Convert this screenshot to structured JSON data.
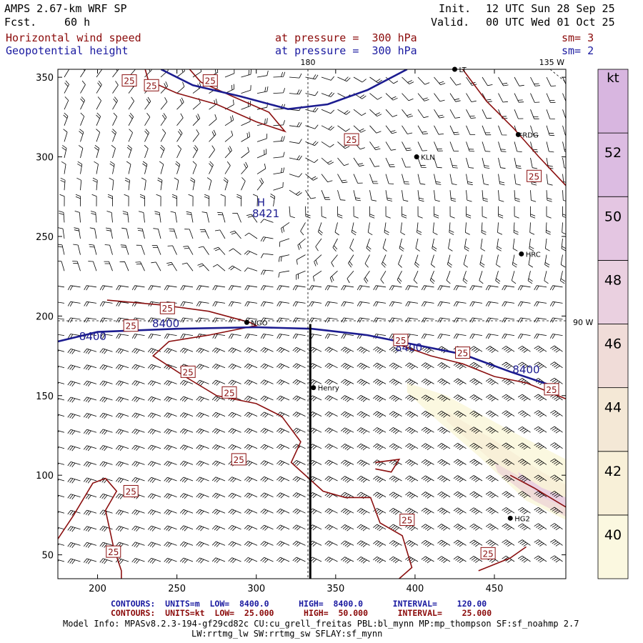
{
  "header": {
    "model": "AMPS 2.67-km WRF SP",
    "fcst_label": "Fcst.",
    "fcst_value": "60 h",
    "init_label": "Init.",
    "init_value": "12 UTC Sun 28 Sep 25",
    "valid_label": "Valid.",
    "valid_value": "00 UTC Wed 01 Oct 25",
    "field1": "Horizontal wind speed",
    "field1_level": "at pressure =  300 hPa",
    "field1_sm": "sm= 3",
    "field2": "Geopotential height",
    "field2_level": "at pressure =  300 hPa",
    "field2_sm": "sm= 2"
  },
  "colors": {
    "speed_contour": "#8b1010",
    "height_contour": "#1c1c90",
    "fill_40": "#fbf8e0",
    "fill_42": "#f8f0d8",
    "fill_44": "#f0dcd8",
    "fill_48": "#ead0e0"
  },
  "chart_data": {
    "type": "contour",
    "title": "Horizontal wind speed / Geopotential height at 300 hPa",
    "xlim": [
      175,
      495
    ],
    "ylim": [
      35,
      355
    ],
    "x_ticks": [
      200,
      250,
      300,
      350,
      400,
      450
    ],
    "y_ticks": [
      50,
      100,
      150,
      200,
      250,
      300,
      350
    ],
    "height_contours": [
      {
        "label": "8400",
        "points": [
          [
            175,
            184
          ],
          [
            200,
            190
          ],
          [
            250,
            192
          ],
          [
            300,
            193
          ],
          [
            335,
            192
          ],
          [
            370,
            188
          ],
          [
            400,
            182
          ],
          [
            430,
            176
          ],
          [
            460,
            165
          ],
          [
            490,
            155
          ]
        ]
      },
      {
        "label": "8400",
        "points": [
          [
            240,
            355
          ],
          [
            260,
            345
          ],
          [
            290,
            338
          ],
          [
            320,
            330
          ],
          [
            345,
            333
          ],
          [
            370,
            342
          ],
          [
            395,
            355
          ]
        ]
      }
    ],
    "height_labels": [
      {
        "text": "8400",
        "x": 197,
        "y": 185
      },
      {
        "text": "8400",
        "x": 243,
        "y": 193
      },
      {
        "text": "8400",
        "x": 396,
        "y": 178
      },
      {
        "text": "8400",
        "x": 470,
        "y": 164
      },
      {
        "text": "8421",
        "x": 306,
        "y": 262
      }
    ],
    "high_marker": {
      "text": "H",
      "x": 303,
      "y": 269
    },
    "speed_label": "25",
    "speed_label_positions": [
      [
        220,
        348
      ],
      [
        234,
        345
      ],
      [
        271,
        348
      ],
      [
        360,
        311
      ],
      [
        475,
        288
      ],
      [
        244,
        205
      ],
      [
        221,
        194
      ],
      [
        257,
        165
      ],
      [
        283,
        152
      ],
      [
        289,
        110
      ],
      [
        221,
        90
      ],
      [
        210,
        52
      ],
      [
        395,
        72
      ],
      [
        391,
        185
      ],
      [
        430,
        177
      ],
      [
        486,
        154
      ],
      [
        446,
        51
      ]
    ],
    "shading_levels": [
      40,
      42,
      44,
      46,
      48,
      50,
      52
    ],
    "colorbar_ticks": [
      "40",
      "42",
      "44",
      "46",
      "48",
      "50",
      "52"
    ],
    "colorbar_unit": "kt",
    "stations": [
      {
        "name": "KLN",
        "x": 401,
        "y": 300
      },
      {
        "name": "RDG",
        "x": 465,
        "y": 314
      },
      {
        "name": "HRC",
        "x": 467,
        "y": 239
      },
      {
        "name": "NGO",
        "x": 294,
        "y": 196
      },
      {
        "name": "Henry",
        "x": 336,
        "y": 155
      },
      {
        "name": "HG2",
        "x": 460,
        "y": 73
      },
      {
        "name": "LT",
        "x": 425,
        "y": 355
      }
    ],
    "meridians": [
      {
        "label": "180"
      },
      {
        "label": "135 W"
      },
      {
        "label": "90 W"
      }
    ],
    "cross_section_x": 334
  },
  "footer": {
    "contours_blue": "CONTOURS:  UNITS=m  LOW=  8400.0      HIGH=  8400.0      INTERVAL=    120.00",
    "contours_red": "CONTOURS:  UNITS=kt  LOW=  25.000      HIGH=  50.000      INTERVAL=    25.000",
    "model_info": "Model Info: MPASv8.2.3-194-gf29cd82c CU:cu_grell_freitas PBL:bl_mynn MP:mp_thompson SF:sf_noahmp 2.7",
    "model_info2": "LW:rrtmg_lw SW:rrtmg_sw SFLAY:sf_mynn"
  }
}
